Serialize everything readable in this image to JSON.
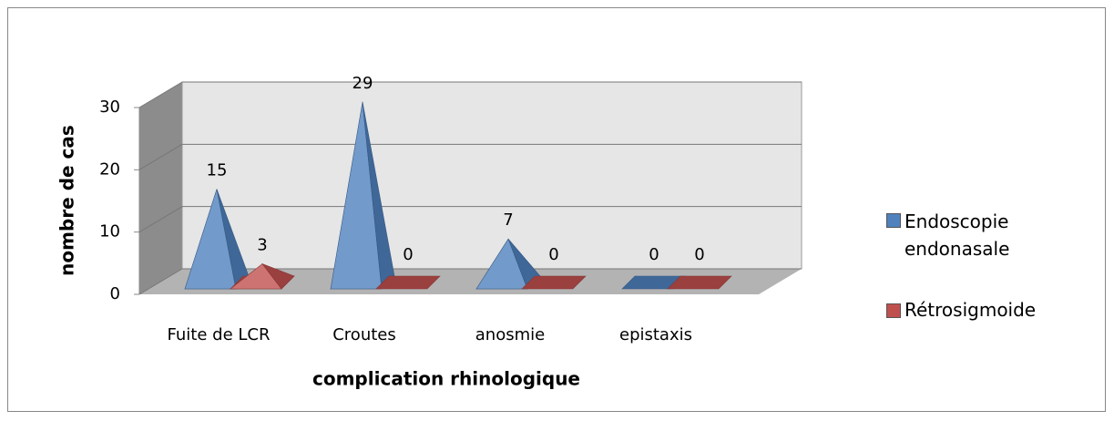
{
  "chart_data": {
    "type": "bar3d-pyramid",
    "categories": [
      "Fuite de LCR",
      "Croutes",
      "anosmie",
      "epistaxis"
    ],
    "series": [
      {
        "name": "Endoscopie endonasale",
        "color": "#4f81bd",
        "values": [
          15,
          29,
          7,
          0
        ]
      },
      {
        "name": "Rétrosigmoide",
        "color": "#c0504d",
        "values": [
          3,
          0,
          0,
          0
        ]
      }
    ],
    "ylim": [
      0,
      30
    ],
    "yticks": [
      0,
      10,
      20,
      30
    ],
    "grid": true,
    "xlabel": "complication rhinologique",
    "ylabel": "nombre de cas",
    "legend": "right"
  }
}
